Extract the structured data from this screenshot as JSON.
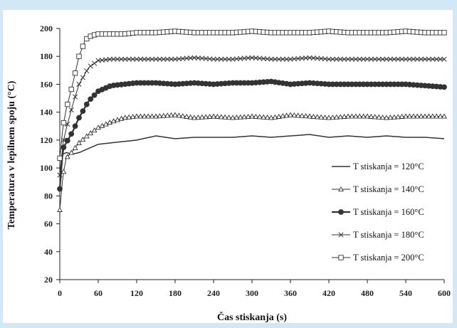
{
  "chart_data": {
    "type": "line",
    "xlabel": "Čas stiskanja (s)",
    "ylabel": "Temperatura v lepilnem spoju (°C)",
    "xlim": [
      0,
      600
    ],
    "ylim": [
      20,
      200
    ],
    "x_ticks": [
      "0",
      "60",
      "120",
      "180",
      "240",
      "300",
      "360",
      "420",
      "480",
      "540",
      "600"
    ],
    "y_ticks": [
      "20",
      "40",
      "60",
      "80",
      "100",
      "120",
      "140",
      "160",
      "180",
      "200"
    ],
    "grid": false,
    "legend_position": "right",
    "series": [
      {
        "name": "T stiskanja = 120°C",
        "marker": "none",
        "x": [
          0,
          5,
          10,
          20,
          30,
          45,
          60,
          80,
          100,
          120,
          150,
          180,
          210,
          240,
          270,
          300,
          330,
          360,
          390,
          420,
          450,
          480,
          510,
          540,
          570,
          600
        ],
        "y": [
          107,
          110,
          111,
          110,
          111,
          114,
          117,
          118,
          119,
          120,
          123,
          121,
          122,
          122,
          122,
          123,
          122,
          123,
          124,
          122,
          123,
          122,
          123,
          122,
          122,
          121
        ]
      },
      {
        "name": "T stiskanja = 140°C",
        "marker": "triangle",
        "x": [
          0,
          5,
          10,
          20,
          30,
          45,
          60,
          80,
          100,
          120,
          150,
          180,
          210,
          240,
          270,
          300,
          330,
          360,
          390,
          420,
          450,
          480,
          510,
          540,
          570,
          600
        ],
        "y": [
          70,
          95,
          107,
          112,
          118,
          124,
          129,
          133,
          136,
          137,
          137,
          138,
          136,
          137,
          136,
          137,
          136,
          138,
          137,
          136,
          137,
          137,
          136,
          137,
          137,
          137
        ]
      },
      {
        "name": "T stiskanja = 160°C",
        "marker": "circle",
        "x": [
          0,
          5,
          10,
          20,
          30,
          45,
          60,
          80,
          100,
          120,
          150,
          180,
          210,
          240,
          270,
          300,
          330,
          360,
          390,
          420,
          450,
          480,
          510,
          540,
          570,
          600
        ],
        "y": [
          85,
          114,
          118,
          126,
          136,
          148,
          155,
          159,
          160,
          161,
          161,
          160,
          161,
          160,
          161,
          161,
          162,
          160,
          161,
          160,
          160,
          160,
          160,
          160,
          159,
          158
        ]
      },
      {
        "name": "T stiskanja = 180°C",
        "marker": "x",
        "x": [
          0,
          5,
          10,
          20,
          30,
          45,
          60,
          80,
          100,
          120,
          150,
          180,
          210,
          240,
          270,
          300,
          330,
          360,
          390,
          420,
          450,
          480,
          510,
          540,
          570,
          600
        ],
        "y": [
          95,
          118,
          128,
          145,
          160,
          172,
          177,
          178,
          178,
          178,
          178,
          178,
          179,
          178,
          178,
          179,
          178,
          178,
          179,
          178,
          178,
          178,
          178,
          178,
          178,
          178
        ]
      },
      {
        "name": "T stiskanja = 200°C",
        "marker": "square",
        "x": [
          0,
          5,
          10,
          20,
          30,
          40,
          50,
          60,
          80,
          100,
          120,
          150,
          180,
          210,
          240,
          270,
          300,
          330,
          360,
          390,
          420,
          450,
          480,
          510,
          540,
          570,
          600
        ],
        "y": [
          107,
          130,
          142,
          160,
          180,
          192,
          195,
          196,
          196,
          196,
          197,
          197,
          198,
          197,
          197,
          197,
          198,
          197,
          197,
          197,
          198,
          197,
          197,
          197,
          198,
          197,
          197
        ]
      }
    ]
  },
  "colors": {
    "background": "#d2e8f5",
    "plot_background": "#ffffff",
    "series_color": "#333333"
  }
}
